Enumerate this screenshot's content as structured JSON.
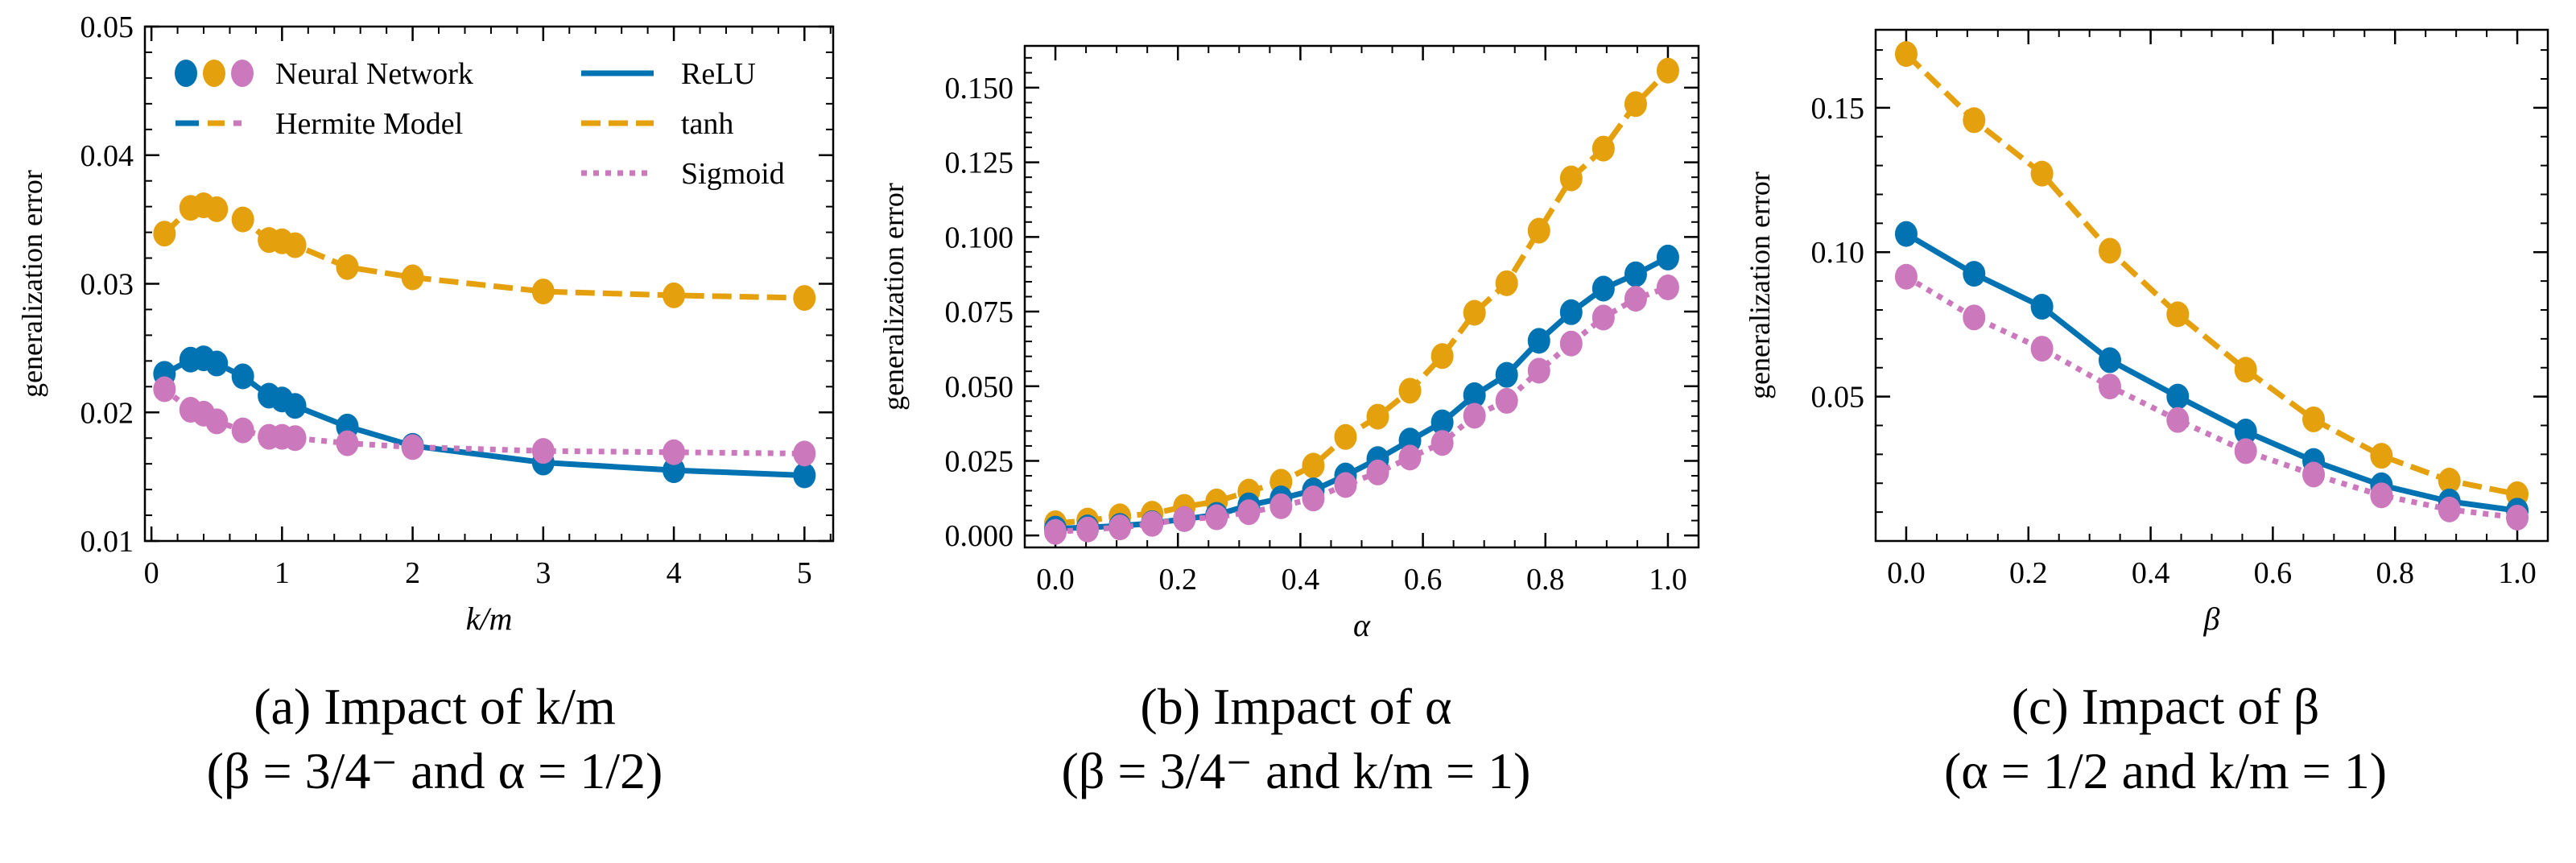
{
  "colors": {
    "relu": "#0173B2",
    "tanh": "#E5A00D",
    "sigmoid": "#CC78BC"
  },
  "legend": {
    "neural_network": "Neural Network",
    "hermite_model": "Hermite Model",
    "relu": "ReLU",
    "tanh": "tanh",
    "sigmoid": "Sigmoid"
  },
  "captions": [
    {
      "line1": "(a) Impact of k/m",
      "line2": "(β = 3/4⁻ and α = 1/2)"
    },
    {
      "line1": "(b) Impact of α",
      "line2": "(β = 3/4⁻ and k/m = 1)"
    },
    {
      "line1": "(c) Impact of β",
      "line2": "(α = 1/2 and k/m = 1)"
    }
  ],
  "chart_data": [
    {
      "type": "line",
      "title": "(a) Impact of k/m (β = 3/4⁻ and α = 1/2)",
      "xlabel": "k/m",
      "ylabel": "generalization error",
      "xlim": [
        -0.05,
        5.22
      ],
      "ylim": [
        0.01,
        0.05
      ],
      "xticks": [
        0,
        1,
        2,
        3,
        4,
        5
      ],
      "xtick_labels": [
        "0",
        "1",
        "2",
        "3",
        "4",
        "5"
      ],
      "xminor_step": 0.2,
      "yticks": [
        0.01,
        0.02,
        0.03,
        0.04,
        0.05
      ],
      "ytick_labels": [
        "0.01",
        "0.02",
        "0.03",
        "0.04",
        "0.05"
      ],
      "yminor_step": 0.002,
      "legend": "top",
      "x": [
        0.1,
        0.3,
        0.4,
        0.5,
        0.7,
        0.9,
        1.0,
        1.1,
        1.5,
        2,
        3,
        4,
        5
      ],
      "series": [
        {
          "name": "tanh",
          "style": "dashed",
          "values": [
            0.0339,
            0.0359,
            0.0361,
            0.0358,
            0.035,
            0.0334,
            0.0333,
            0.033,
            0.0313,
            0.0305,
            0.0294,
            0.0291,
            0.0289
          ]
        },
        {
          "name": "ReLU",
          "style": "solid",
          "values": [
            0.023,
            0.0241,
            0.0242,
            0.0238,
            0.0228,
            0.0213,
            0.021,
            0.0205,
            0.0189,
            0.0174,
            0.0161,
            0.0155,
            0.0151
          ]
        },
        {
          "name": "Sigmoid",
          "style": "dotted",
          "values": [
            0.0218,
            0.0202,
            0.0199,
            0.0193,
            0.0186,
            0.0181,
            0.0181,
            0.018,
            0.0176,
            0.0173,
            0.017,
            0.0169,
            0.0168
          ]
        }
      ]
    },
    {
      "type": "line",
      "title": "(b) Impact of α (β = 3/4⁻ and k/m = 1)",
      "xlabel": "α",
      "ylabel": "generalization error",
      "xlim": [
        -0.05,
        1.05
      ],
      "ylim": [
        -0.004,
        0.164
      ],
      "xticks": [
        0.0,
        0.2,
        0.4,
        0.6,
        0.8,
        1.0
      ],
      "xtick_labels": [
        "0.0",
        "0.2",
        "0.4",
        "0.6",
        "0.8",
        "1.0"
      ],
      "xminor_step": 0.05,
      "yticks": [
        0.0,
        0.025,
        0.05,
        0.075,
        0.1,
        0.125,
        0.15
      ],
      "ytick_labels": [
        "0.000",
        "0.025",
        "0.050",
        "0.075",
        "0.100",
        "0.125",
        "0.150"
      ],
      "yminor_step": 0.005,
      "x": [
        0.0,
        0.0526,
        0.1053,
        0.1579,
        0.2105,
        0.2632,
        0.3158,
        0.3684,
        0.4211,
        0.4737,
        0.5263,
        0.5789,
        0.6316,
        0.6842,
        0.7368,
        0.7895,
        0.8421,
        0.8947,
        0.9474,
        1.0
      ],
      "series": [
        {
          "name": "tanh",
          "style": "dashed",
          "values": [
            0.0041,
            0.005,
            0.0064,
            0.0073,
            0.0096,
            0.0114,
            0.0147,
            0.018,
            0.0234,
            0.033,
            0.0398,
            0.0485,
            0.0601,
            0.0746,
            0.0845,
            0.1021,
            0.1196,
            0.1296,
            0.1445,
            0.1557
          ]
        },
        {
          "name": "ReLU",
          "style": "solid",
          "values": [
            0.0023,
            0.0027,
            0.0032,
            0.0041,
            0.0055,
            0.0069,
            0.0101,
            0.0124,
            0.0151,
            0.0201,
            0.0256,
            0.0318,
            0.0379,
            0.047,
            0.0538,
            0.0652,
            0.0748,
            0.0827,
            0.0875,
            0.0931
          ]
        },
        {
          "name": "Sigmoid",
          "style": "dotted",
          "values": [
            0.0012,
            0.002,
            0.0027,
            0.0039,
            0.0055,
            0.0061,
            0.0078,
            0.0098,
            0.0124,
            0.0169,
            0.0211,
            0.0261,
            0.031,
            0.0401,
            0.0451,
            0.0552,
            0.0643,
            0.073,
            0.0793,
            0.0831
          ]
        }
      ]
    },
    {
      "type": "line",
      "title": "(c) Impact of β (α = 1/2 and k/m = 1)",
      "xlabel": "β",
      "ylabel": "generalization error",
      "xlim": [
        -0.05,
        1.05
      ],
      "ylim": [
        0.0,
        0.177
      ],
      "xticks": [
        0.0,
        0.2,
        0.4,
        0.6,
        0.8,
        1.0
      ],
      "xtick_labels": [
        "0.0",
        "0.2",
        "0.4",
        "0.6",
        "0.8",
        "1.0"
      ],
      "xminor_step": 0.05,
      "yticks": [
        0.05,
        0.1,
        0.15
      ],
      "ytick_labels": [
        "0.05",
        "0.10",
        "0.15"
      ],
      "yminor_step": 0.01,
      "x": [
        0.0,
        0.1111,
        0.2222,
        0.3333,
        0.4444,
        0.5556,
        0.6667,
        0.7778,
        0.8889,
        1.0
      ],
      "series": [
        {
          "name": "tanh",
          "style": "dashed",
          "values": [
            0.1686,
            0.1457,
            0.1272,
            0.1005,
            0.0785,
            0.0593,
            0.0421,
            0.0295,
            0.0209,
            0.0162
          ]
        },
        {
          "name": "ReLU",
          "style": "solid",
          "values": [
            0.1063,
            0.0925,
            0.0811,
            0.0626,
            0.05,
            0.0379,
            0.0277,
            0.0193,
            0.0137,
            0.0105
          ]
        },
        {
          "name": "Sigmoid",
          "style": "dotted",
          "values": [
            0.0915,
            0.0774,
            0.0666,
            0.0535,
            0.0419,
            0.0311,
            0.023,
            0.0158,
            0.0109,
            0.0081
          ]
        }
      ]
    }
  ]
}
